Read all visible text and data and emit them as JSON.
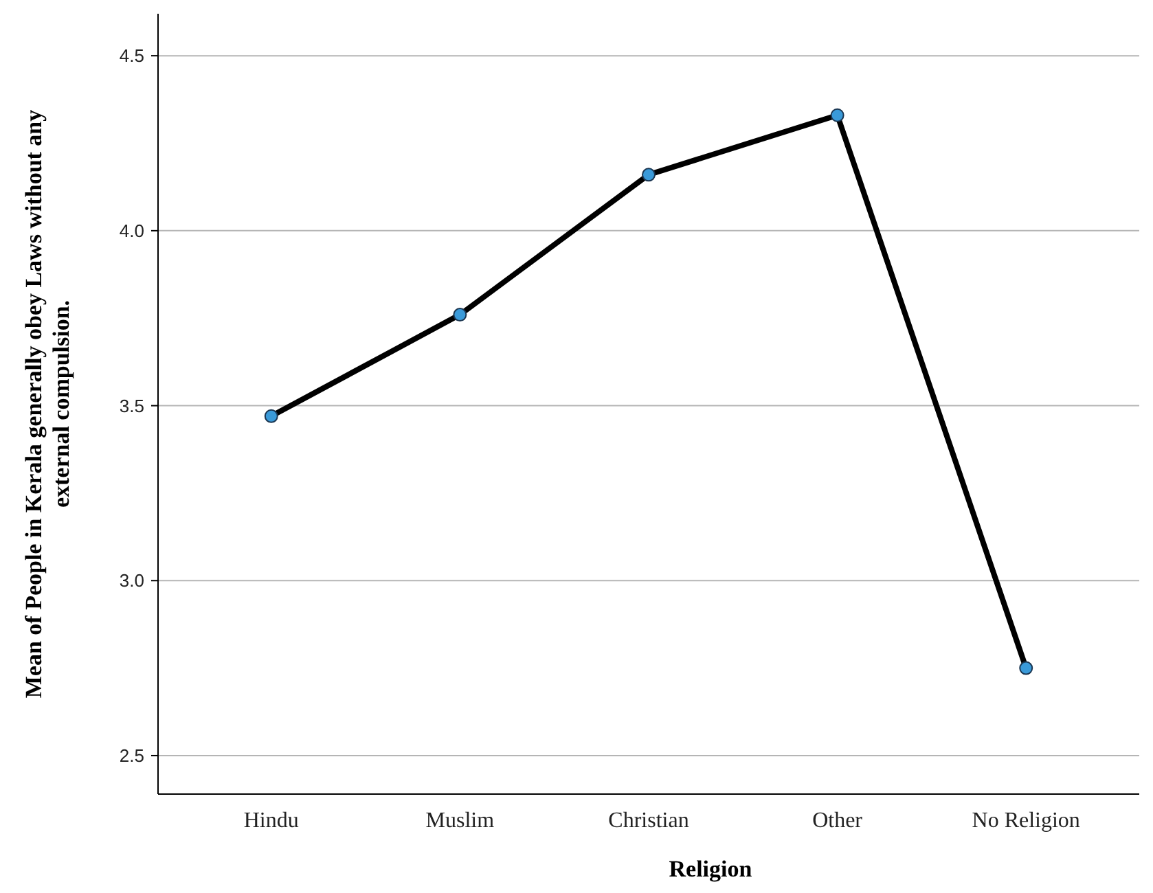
{
  "chart_data": {
    "type": "line",
    "xlabel": "Religion",
    "ylabel": "Mean of People in Kerala generally obey Laws without any external compulsion.",
    "categories": [
      "Hindu",
      "Muslim",
      "Christian",
      "Other",
      "No Religion"
    ],
    "series": [
      {
        "color": "#000000",
        "values": [
          3.47,
          3.76,
          4.16,
          4.33,
          2.75
        ]
      }
    ],
    "ylim": [
      2.39,
      4.62
    ],
    "yticks": [
      2.5,
      {
        "value": 3,
        "label": "3.0"
      },
      3.5,
      {
        "value": 4,
        "label": "4.0"
      },
      4.5
    ],
    "grid": "y",
    "marker": "circle",
    "line_style": "solid"
  }
}
